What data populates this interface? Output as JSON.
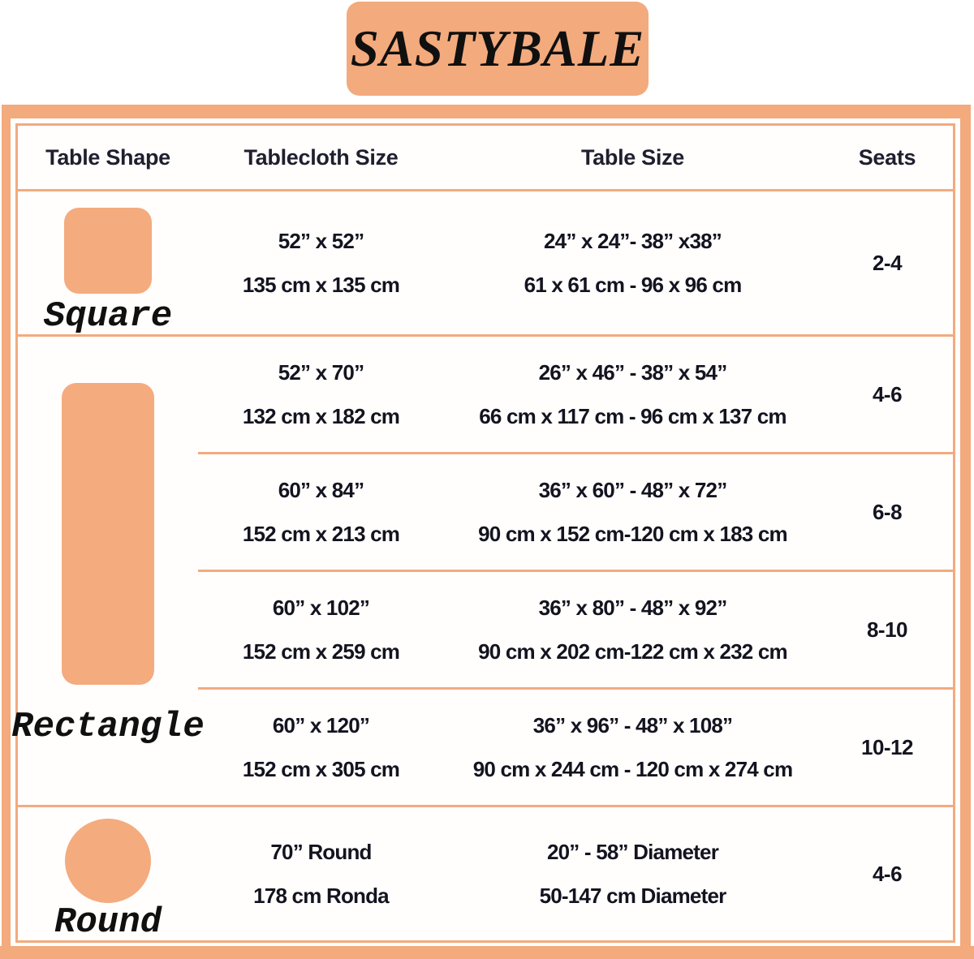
{
  "brand": {
    "logo_text": "SASTYBALE"
  },
  "colors": {
    "peach": "#f3aa7d",
    "shape_fill": "#f4ab7e",
    "text": "#141420"
  },
  "table": {
    "headers": {
      "shape": "Table Shape",
      "cloth": "Tablecloth Size",
      "size": "Table Size",
      "seats": "Seats"
    },
    "rows": {
      "square": {
        "label": "Square",
        "cloth_in": "52” x 52”",
        "cloth_cm": "135 cm x 135 cm",
        "size_in": "24” x 24”- 38” x38”",
        "size_cm": "61 x 61 cm - 96 x 96 cm",
        "seats": "2-4"
      },
      "rect": {
        "label": "Rectangle",
        "subs": [
          {
            "cloth_in": "52” x 70”",
            "cloth_cm": "132 cm x 182 cm",
            "size_in": "26” x 46” - 38” x 54”",
            "size_cm": "66 cm x 117 cm - 96 cm x 137 cm",
            "seats": "4-6"
          },
          {
            "cloth_in": "60” x 84”",
            "cloth_cm": "152 cm x 213 cm",
            "size_in": "36” x 60” - 48” x 72”",
            "size_cm": "90 cm x 152 cm-120 cm x 183 cm",
            "seats": "6-8"
          },
          {
            "cloth_in": "60” x 102”",
            "cloth_cm": "152 cm x 259 cm",
            "size_in": "36” x 80” - 48” x 92”",
            "size_cm": "90 cm x 202 cm-122 cm x 232 cm",
            "seats": "8-10"
          },
          {
            "cloth_in": "60” x 120”",
            "cloth_cm": "152 cm x 305 cm",
            "size_in": "36” x 96” - 48” x 108”",
            "size_cm": "90 cm x 244 cm - 120 cm x 274 cm",
            "seats": "10-12"
          }
        ]
      },
      "round": {
        "label": "Round",
        "cloth_in": "70” Round",
        "cloth_cm": "178 cm Ronda",
        "size_in": "20” - 58” Diameter",
        "size_cm": "50-147 cm Diameter",
        "seats": "4-6"
      }
    }
  },
  "chart_data": {
    "type": "table",
    "title": "SASTYBALE",
    "columns": [
      "Table Shape",
      "Tablecloth Size",
      "Table Size",
      "Seats"
    ],
    "rows": [
      [
        "Square",
        "52” x 52” | 135 cm x 135 cm",
        "24” x 24”- 38” x38” | 61 x 61 cm - 96 x 96 cm",
        "2-4"
      ],
      [
        "Rectangle",
        "52” x 70” | 132 cm x 182 cm",
        "26” x 46” - 38” x 54” | 66 cm x 117 cm - 96 cm x 137 cm",
        "4-6"
      ],
      [
        "Rectangle",
        "60” x 84” | 152 cm x 213 cm",
        "36” x 60” - 48” x 72” | 90 cm x 152 cm-120 cm x 183 cm",
        "6-8"
      ],
      [
        "Rectangle",
        "60” x 102” | 152 cm x 259 cm",
        "36” x 80” - 48” x 92” | 90 cm x 202 cm-122 cm x 232 cm",
        "8-10"
      ],
      [
        "Rectangle",
        "60” x 120” | 152 cm x 305 cm",
        "36” x 96” - 48” x 108” | 90 cm x 244 cm - 120 cm x 274 cm",
        "10-12"
      ],
      [
        "Round",
        "70” Round | 178 cm Ronda",
        "20” - 58” Diameter | 50-147 cm Diameter",
        "4-6"
      ]
    ]
  }
}
